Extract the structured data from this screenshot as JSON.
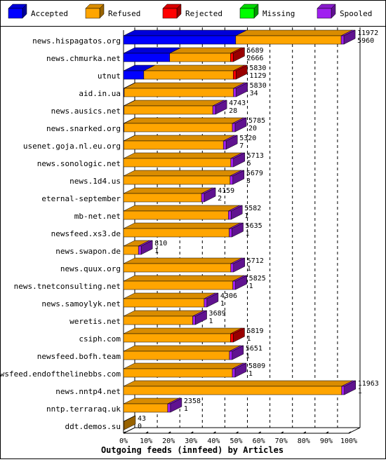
{
  "chart_data": {
    "type": "bar",
    "orientation": "horizontal",
    "stacked": true,
    "title": "",
    "xlabel": "Outgoing feeds (innfeed) by Articles",
    "ylabel": "",
    "x_unit": "percent",
    "xlim": [
      0,
      100
    ],
    "x_ticks": [
      "0%",
      "10%",
      "20%",
      "30%",
      "40%",
      "50%",
      "60%",
      "70%",
      "80%",
      "90%",
      "100%"
    ],
    "legend": {
      "position": "top",
      "items": [
        {
          "name": "Accepted",
          "color": "#0000ff"
        },
        {
          "name": "Refused",
          "color": "#ffa500"
        },
        {
          "name": "Rejected",
          "color": "#ff0000"
        },
        {
          "name": "Missing",
          "color": "#00ff00"
        },
        {
          "name": "Spooled",
          "color": "#a020f0"
        }
      ]
    },
    "categories": [
      "news.hispagatos.org",
      "news.chmurka.net",
      "utnut",
      "aid.in.ua",
      "news.ausics.net",
      "news.snarked.org",
      "usenet.goja.nl.eu.org",
      "news.sonologic.net",
      "news.1d4.us",
      "eternal-september",
      "mb-net.net",
      "newsfeed.xs3.de",
      "news.swapon.de",
      "news.quux.org",
      "news.tnetconsulting.net",
      "news.samoylyk.net",
      "weretis.net",
      "csiph.com",
      "newsfeed.bofh.team",
      "newsfeed.endofthelinebbs.com",
      "news.nntp4.net",
      "nntp.terraraq.uk",
      "ddt.demos.su"
    ],
    "bar_labels": {
      "offered": [
        "11972",
        "5689",
        "5830",
        "5830",
        "4743",
        "5785",
        "5320",
        "5713",
        "5679",
        "4159",
        "5582",
        "5635",
        "810",
        "5712",
        "5825",
        "4306",
        "3689",
        "5819",
        "5651",
        "5809",
        "11963",
        "2358",
        "43"
      ],
      "accepted": [
        "5960",
        "2666",
        "1129",
        "34",
        "28",
        "20",
        "7",
        "5",
        "3",
        "2",
        "1",
        "1",
        "1",
        "1",
        "1",
        "1",
        "1",
        "1",
        "1",
        "1",
        "1",
        "1",
        "0"
      ]
    },
    "series": [
      {
        "name": "Accepted",
        "values": [
          49.8,
          20.5,
          9.0,
          0.3,
          0.2,
          0.2,
          0.1,
          0.0,
          0.0,
          0.0,
          0.0,
          0.0,
          0.0,
          0.0,
          0.0,
          0.0,
          0.0,
          0.0,
          0.0,
          0.0,
          0.0,
          0.0,
          0.0
        ]
      },
      {
        "name": "Refused",
        "values": [
          46.8,
          27.0,
          39.7,
          48.5,
          39.4,
          48.1,
          44.2,
          47.6,
          47.3,
          34.6,
          46.5,
          46.9,
          6.6,
          47.6,
          48.5,
          35.8,
          30.7,
          47.5,
          47.0,
          48.3,
          96.8,
          19.6,
          0.3
        ]
      },
      {
        "name": "Rejected",
        "values": [
          0.0,
          0.0,
          0.0,
          0.0,
          0.0,
          0.0,
          0.0,
          0.0,
          0.0,
          0.0,
          0.0,
          0.0,
          0.0,
          0.0,
          0.0,
          0.0,
          0.0,
          0.0,
          0.0,
          0.0,
          0.0,
          0.0,
          0.0
        ]
      },
      {
        "name": "Missing",
        "values": [
          0.0,
          0.0,
          0.0,
          0.0,
          0.0,
          0.0,
          0.0,
          0.0,
          0.0,
          0.0,
          0.0,
          0.0,
          0.0,
          0.0,
          0.0,
          0.0,
          0.0,
          0.0,
          0.0,
          0.0,
          0.0,
          0.0,
          0.0
        ]
      },
      {
        "name": "Spooled",
        "values": [
          0.0,
          0.0,
          0.0,
          0.0,
          0.0,
          0.0,
          0.0,
          0.0,
          0.0,
          0.0,
          0.0,
          0.0,
          0.0,
          0.0,
          0.0,
          0.0,
          0.0,
          0.0,
          0.0,
          0.0,
          0.0,
          0.0,
          0.0
        ]
      }
    ],
    "grid": {
      "vertical": true,
      "style": "dashed"
    }
  }
}
